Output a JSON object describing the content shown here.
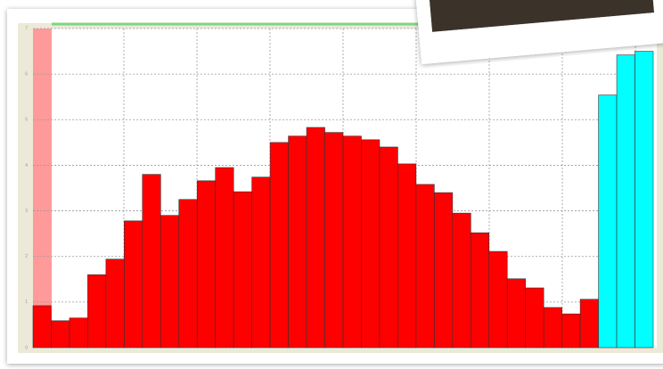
{
  "chart_data": {
    "type": "bar",
    "values": [
      0.92,
      0.59,
      0.65,
      1.6,
      1.94,
      2.78,
      3.8,
      2.9,
      3.25,
      3.66,
      3.95,
      3.42,
      3.74,
      4.5,
      4.64,
      4.83,
      4.72,
      4.64,
      4.56,
      4.4,
      4.03,
      3.58,
      3.4,
      2.95,
      2.52,
      2.11,
      1.51,
      1.31,
      0.88,
      0.74,
      1.06,
      5.54,
      6.42,
      6.5
    ],
    "bar_colors": [
      "#ff0000",
      "#ff0000",
      "#ff0000",
      "#ff0000",
      "#ff0000",
      "#ff0000",
      "#ff0000",
      "#ff0000",
      "#ff0000",
      "#ff0000",
      "#ff0000",
      "#ff0000",
      "#ff0000",
      "#ff0000",
      "#ff0000",
      "#ff0000",
      "#ff0000",
      "#ff0000",
      "#ff0000",
      "#ff0000",
      "#ff0000",
      "#ff0000",
      "#ff0000",
      "#ff0000",
      "#ff0000",
      "#ff0000",
      "#ff0000",
      "#ff0000",
      "#ff0000",
      "#ff0000",
      "#ff0000",
      "#00ffff",
      "#00ffff",
      "#00ffff"
    ],
    "ylim": [
      0,
      7
    ],
    "yticks": [
      0,
      1,
      2,
      3,
      4,
      5,
      6,
      7
    ],
    "grid": true
  }
}
